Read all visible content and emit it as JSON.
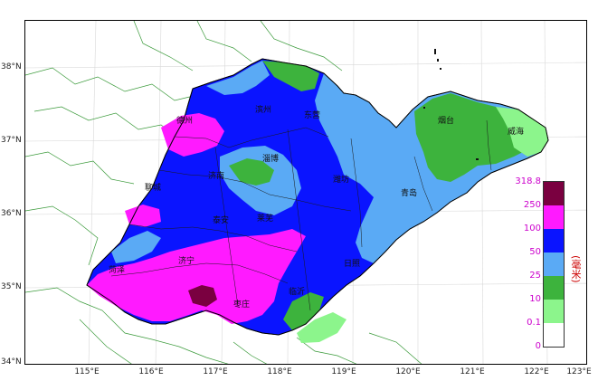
{
  "map": {
    "latitude_labels": [
      "38°N",
      "37°N",
      "36°N",
      "35°N",
      "34°N"
    ],
    "longitude_labels": [
      "115°E",
      "116°E",
      "117°E",
      "118°E",
      "119°E",
      "120°E",
      "121°E",
      "122°E",
      "123°E"
    ],
    "cities": [
      {
        "id": "dezhou",
        "name": "德州"
      },
      {
        "id": "binzhou",
        "name": "滨州"
      },
      {
        "id": "dongying",
        "name": "东营"
      },
      {
        "id": "yantai",
        "name": "烟台"
      },
      {
        "id": "weihai",
        "name": "威海"
      },
      {
        "id": "liaocheng",
        "name": "聊城"
      },
      {
        "id": "jinan",
        "name": "济南"
      },
      {
        "id": "zibo",
        "name": "淄博"
      },
      {
        "id": "weifang",
        "name": "潍坊"
      },
      {
        "id": "qingdao",
        "name": "青岛"
      },
      {
        "id": "taian",
        "name": "泰安"
      },
      {
        "id": "laiwu",
        "name": "莱芜"
      },
      {
        "id": "heze",
        "name": "菏泽"
      },
      {
        "id": "jining",
        "name": "济宁"
      },
      {
        "id": "rizhao",
        "name": "日照"
      },
      {
        "id": "zaozhuang",
        "name": "枣庄"
      },
      {
        "id": "linyi",
        "name": "临沂"
      }
    ]
  },
  "legend": {
    "levels": [
      "318.8",
      "250",
      "100",
      "50",
      "25",
      "10",
      "0.1",
      "0"
    ],
    "unit": "(毫米)",
    "colors": [
      "#7a0040",
      "#ff1aff",
      "#0a14ff",
      "#5aaaf5",
      "#3db33d",
      "#8cf58c",
      "#ffffff"
    ],
    "label_color": "#cc00cc",
    "unit_color": "#cc0000"
  },
  "rainfall_levels_mm": [
    {
      "range": "0–0.1",
      "color": "#ffffff"
    },
    {
      "range": "0.1–10",
      "color": "#8cf58c"
    },
    {
      "range": "10–25",
      "color": "#3db33d"
    },
    {
      "range": "25–50",
      "color": "#5aaaf5"
    },
    {
      "range": "50–100",
      "color": "#0a14ff"
    },
    {
      "range": "100–250",
      "color": "#ff1aff"
    },
    {
      "range": "250–318.8",
      "color": "#7a0040"
    }
  ]
}
